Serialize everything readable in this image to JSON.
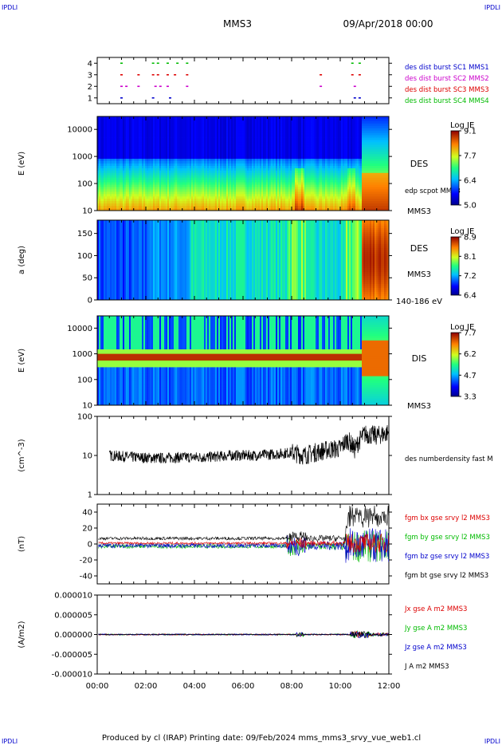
{
  "corner_labels": {
    "tl": "IPDLI",
    "tr": "IPDLI",
    "bl": "IPDLI",
    "br": "IPDLI"
  },
  "header": {
    "spacecraft": "MMS3",
    "date": "09/Apr/2018 00:00"
  },
  "footer": {
    "credit": "Produced by cl (IRAP)   Printing date: 09/Feb/2024   mms_mms3_srvy_vue_web1.cl"
  },
  "colors": {
    "red": "#dd0000",
    "green": "#00bb00",
    "blue": "#0000cc",
    "magenta": "#cc00cc",
    "black": "#000000"
  },
  "chart_data": [
    {
      "type": "scatter",
      "id": "burst",
      "x_ticks": [
        "00:00",
        "02:00",
        "04:00",
        "06:00",
        "08:00",
        "10:00",
        "12:00"
      ],
      "x_range_hours": [
        0,
        12
      ],
      "y_ticks": [
        "4",
        "3",
        "2",
        "1"
      ],
      "ylim": [
        0.5,
        4.5
      ],
      "series": [
        {
          "name": "des dist burst SC1 MMS1",
          "color": "#0000cc",
          "y": 1,
          "x_hours": [
            1.0,
            2.3,
            3.0,
            10.6,
            10.8
          ]
        },
        {
          "name": "des dist burst SC2 MMS2",
          "color": "#cc00cc",
          "y": 2,
          "x_hours": [
            1.0,
            1.2,
            1.7,
            2.4,
            2.6,
            2.9,
            3.7,
            9.2,
            10.6
          ]
        },
        {
          "name": "des dist burst SC3 MMS3",
          "color": "#dd0000",
          "y": 3,
          "x_hours": [
            1.0,
            1.7,
            2.3,
            2.5,
            2.9,
            3.2,
            3.7,
            9.2,
            10.5,
            10.8
          ]
        },
        {
          "name": "des dist burst SC4 MMS4",
          "color": "#00bb00",
          "y": 4,
          "x_hours": [
            1.0,
            2.3,
            2.5,
            2.9,
            3.3,
            3.7,
            10.5,
            10.8
          ]
        }
      ]
    },
    {
      "type": "heatmap",
      "id": "des_energy",
      "ylabel": "E (eV)",
      "y_ticks": [
        "10000",
        "1000",
        "100",
        "10"
      ],
      "yscale": "log",
      "ylim": [
        10,
        30000
      ],
      "labels_right": [
        "DES",
        "edp scpot MMS3",
        "MMS3"
      ],
      "colorbar": {
        "title": "Log JE",
        "ticks": [
          "9.1",
          "7.7",
          "6.4",
          "5.0"
        ],
        "range": [
          5.0,
          9.1
        ]
      }
    },
    {
      "type": "heatmap",
      "id": "des_pitch",
      "ylabel": "a (deg)",
      "y_ticks": [
        "150",
        "100",
        "50",
        "0"
      ],
      "ylim": [
        0,
        180
      ],
      "labels_right": [
        "DES",
        "MMS3",
        "140-186 eV"
      ],
      "colorbar": {
        "title": "Log JE",
        "ticks": [
          "8.9",
          "8.1",
          "7.2",
          "6.4"
        ],
        "range": [
          6.4,
          8.9
        ]
      }
    },
    {
      "type": "heatmap",
      "id": "dis_energy",
      "ylabel": "E (eV)",
      "y_ticks": [
        "10000",
        "1000",
        "100",
        "10"
      ],
      "yscale": "log",
      "ylim": [
        10,
        30000
      ],
      "labels_right": [
        "DIS",
        "MMS3"
      ],
      "colorbar": {
        "title": "Log JE",
        "ticks": [
          "7.7",
          "6.2",
          "4.7",
          "3.3"
        ],
        "range": [
          3.3,
          7.7
        ]
      }
    },
    {
      "type": "line",
      "id": "density",
      "ylabel": "(cm^-3)",
      "y_ticks": [
        "100",
        "10",
        "1"
      ],
      "yscale": "log",
      "ylim": [
        1,
        100
      ],
      "series": [
        {
          "name": "des numberdensity fast M",
          "color": "#000000"
        }
      ],
      "profile": {
        "x_hours": [
          0.5,
          1.5,
          2.5,
          3.5,
          4.5,
          5.5,
          6.5,
          7.5,
          8.0,
          8.5,
          9.0,
          9.5,
          10.0,
          10.3,
          10.6,
          11.0,
          11.5,
          12.0
        ],
        "values": [
          10,
          9,
          8.5,
          9,
          9,
          10,
          10,
          11,
          12,
          10,
          12,
          14,
          15,
          25,
          14,
          35,
          32,
          38
        ]
      }
    },
    {
      "type": "line",
      "id": "fgm",
      "ylabel": "(nT)",
      "y_ticks": [
        "40",
        "20",
        "0",
        "-20",
        "-40"
      ],
      "ylim": [
        -50,
        50
      ],
      "series": [
        {
          "name": "fgm bx gse srvy l2 MMS3",
          "color": "#dd0000"
        },
        {
          "name": "fgm by gse srvy l2 MMS3",
          "color": "#00bb00"
        },
        {
          "name": "fgm bz gse srvy l2 MMS3",
          "color": "#0000cc"
        },
        {
          "name": "fgm bt gse srvy l2 MMS3",
          "color": "#000000"
        }
      ]
    },
    {
      "type": "line",
      "id": "current",
      "ylabel": "(A/m2)",
      "y_ticks": [
        "0.000010",
        "0.000005",
        "0.000000",
        "-0.000005",
        "-0.000010"
      ],
      "ylim": [
        -1e-05,
        1e-05
      ],
      "series": [
        {
          "name": "Jx gse A m2 MMS3",
          "color": "#dd0000"
        },
        {
          "name": "Jy gse A m2 MMS3",
          "color": "#00bb00"
        },
        {
          "name": "Jz gse A m2 MMS3",
          "color": "#0000cc"
        },
        {
          "name": "J A m2 MMS3",
          "color": "#000000"
        }
      ]
    }
  ]
}
